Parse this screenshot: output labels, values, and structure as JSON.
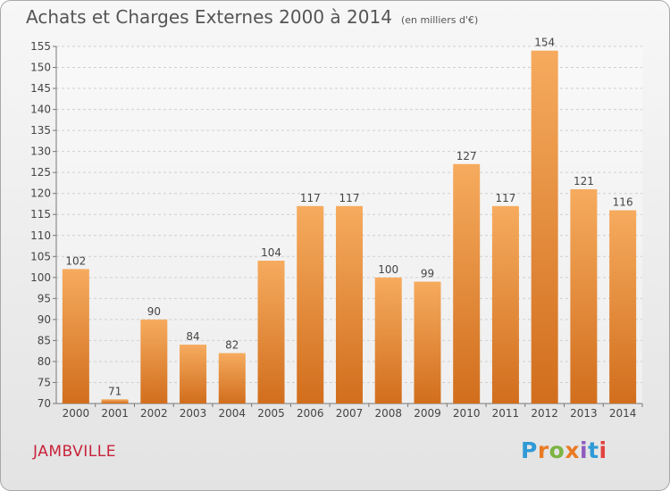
{
  "title": "Achats et Charges Externes 2000 à 2014",
  "unit": "(en milliers d'€)",
  "commune": "JAMBVILLE",
  "brand": "Proxiti",
  "colors": {
    "bar_light": "#f6ab5e",
    "bar_dark": "#d16e1d",
    "brand_letters": [
      "#2f9ad6",
      "#e97b25",
      "#7cb342",
      "#e97b25",
      "#8e5bbf",
      "#2f9ad6",
      "#e2413f"
    ]
  },
  "chart_data": {
    "type": "bar",
    "categories": [
      "2000",
      "2001",
      "2002",
      "2003",
      "2004",
      "2005",
      "2006",
      "2007",
      "2008",
      "2009",
      "2010",
      "2011",
      "2012",
      "2013",
      "2014"
    ],
    "values": [
      102,
      71,
      90,
      84,
      82,
      104,
      117,
      117,
      100,
      99,
      127,
      117,
      154,
      121,
      116
    ],
    "ylim": [
      70,
      155
    ],
    "yticks": [
      70,
      75,
      80,
      85,
      90,
      95,
      100,
      105,
      110,
      115,
      120,
      125,
      130,
      135,
      140,
      145,
      150,
      155
    ],
    "grid": true,
    "data_labels": true
  }
}
